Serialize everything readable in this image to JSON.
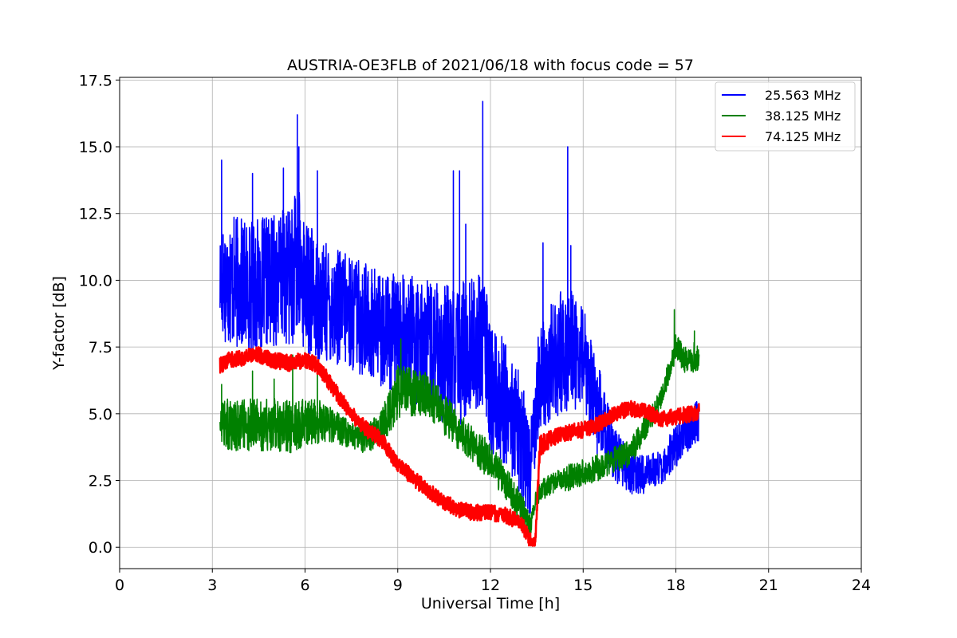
{
  "chart_data": {
    "type": "line",
    "title": "AUSTRIA-OE3FLB of 2021/06/18 with focus code = 57",
    "xlabel": "Universal Time [h]",
    "ylabel": "Y-factor [dB]",
    "xlim": [
      0,
      24
    ],
    "ylim": [
      -0.8,
      17.6
    ],
    "xticks": [
      0,
      3,
      6,
      9,
      12,
      15,
      18,
      21,
      24
    ],
    "yticks": [
      0.0,
      2.5,
      5.0,
      7.5,
      10.0,
      12.5,
      15.0,
      17.5
    ],
    "xtick_labels": [
      "0",
      "3",
      "6",
      "9",
      "12",
      "15",
      "18",
      "21",
      "24"
    ],
    "ytick_labels": [
      "0.0",
      "2.5",
      "5.0",
      "7.5",
      "10.0",
      "12.5",
      "15.0",
      "17.5"
    ],
    "grid": true,
    "legend_position": "top-right",
    "series": [
      {
        "name": "25.563 MHz",
        "color": "#0000ff",
        "x": [
          3.25,
          3.5,
          4,
          4.5,
          5,
          5.5,
          5.8,
          6,
          6.5,
          7,
          7.5,
          8,
          8.5,
          9,
          9.5,
          10,
          10.5,
          11,
          11.5,
          11.8,
          12,
          12.5,
          13,
          13.3,
          13.5,
          14,
          14.5,
          15,
          15.5,
          16,
          16.5,
          17,
          17.5,
          18,
          18.5,
          18.75
        ],
        "y": [
          10.0,
          10.0,
          9.8,
          9.8,
          10.0,
          10.2,
          10.5,
          9.8,
          9.2,
          9.0,
          8.8,
          8.5,
          8.2,
          8.0,
          7.8,
          7.6,
          7.2,
          7.2,
          7.6,
          8.0,
          5.8,
          5.5,
          4.0,
          3.0,
          6.0,
          7.0,
          7.5,
          7.0,
          5.0,
          3.5,
          2.8,
          2.7,
          3.0,
          3.8,
          4.5,
          4.8
        ],
        "spread": [
          2.0,
          2.5,
          2.5,
          2.5,
          2.5,
          2.6,
          3.0,
          2.5,
          2.3,
          2.2,
          2.2,
          2.2,
          2.2,
          2.2,
          2.4,
          2.4,
          2.6,
          2.8,
          2.6,
          2.6,
          2.4,
          2.4,
          2.4,
          1.8,
          2.2,
          2.2,
          2.4,
          2.0,
          1.8,
          1.0,
          0.8,
          0.7,
          0.7,
          0.8,
          0.8,
          0.8
        ],
        "peaks": [
          [
            3.3,
            14.5
          ],
          [
            4.3,
            14.0
          ],
          [
            5.3,
            14.2
          ],
          [
            5.75,
            16.2
          ],
          [
            5.8,
            15.0
          ],
          [
            6.4,
            14.1
          ],
          [
            10.8,
            14.1
          ],
          [
            11.0,
            14.1
          ],
          [
            11.2,
            12.1
          ],
          [
            11.75,
            16.7
          ],
          [
            13.7,
            11.4
          ],
          [
            14.5,
            15.0
          ],
          [
            14.6,
            11.3
          ]
        ]
      },
      {
        "name": "38.125 MHz",
        "color": "#008000",
        "x": [
          3.25,
          3.5,
          4,
          4.5,
          5,
          5.5,
          6,
          6.5,
          7,
          7.5,
          8,
          8.5,
          8.8,
          9,
          9.5,
          10,
          10.5,
          11,
          11.5,
          12,
          12.5,
          13,
          13.3,
          13.5,
          14,
          14.5,
          15,
          15.5,
          16,
          16.5,
          17,
          17.5,
          18,
          18.3,
          18.75
        ],
        "y": [
          4.5,
          4.6,
          4.6,
          4.6,
          4.6,
          4.5,
          4.7,
          4.7,
          4.5,
          4.2,
          4.0,
          4.6,
          5.2,
          5.8,
          5.8,
          5.7,
          5.0,
          4.3,
          3.8,
          3.2,
          2.4,
          1.5,
          0.8,
          2.0,
          2.4,
          2.6,
          2.8,
          3.0,
          3.3,
          3.5,
          4.5,
          5.5,
          7.5,
          7.0,
          7.2
        ],
        "spread": [
          0.8,
          1.0,
          1.0,
          1.0,
          1.0,
          1.0,
          0.9,
          0.8,
          0.6,
          0.5,
          0.5,
          0.7,
          0.8,
          1.0,
          0.9,
          0.8,
          0.8,
          0.7,
          0.7,
          0.7,
          0.6,
          0.6,
          0.4,
          0.4,
          0.4,
          0.5,
          0.5,
          0.5,
          0.5,
          0.5,
          0.5,
          0.4,
          0.5,
          0.5,
          0.6
        ],
        "peaks": [
          [
            3.3,
            6.1
          ],
          [
            4.3,
            6.6
          ],
          [
            5.0,
            6.3
          ],
          [
            5.6,
            7.2
          ],
          [
            6.4,
            6.6
          ],
          [
            9.1,
            7.8
          ],
          [
            17.95,
            8.9
          ],
          [
            18.6,
            8.1
          ]
        ]
      },
      {
        "name": "74.125 MHz",
        "color": "#ff0000",
        "x": [
          3.25,
          3.5,
          4,
          4.5,
          5,
          5.5,
          6,
          6.3,
          6.6,
          7,
          7.5,
          8,
          8.5,
          9,
          9.5,
          10,
          10.5,
          11,
          11.5,
          12,
          12.5,
          13,
          13.3,
          13.45,
          13.6,
          14,
          14.5,
          15,
          15.5,
          16,
          16.5,
          17,
          17.5,
          18,
          18.5,
          18.75
        ],
        "y": [
          6.8,
          7.0,
          7.1,
          7.2,
          7.0,
          6.9,
          7.0,
          6.9,
          6.5,
          5.8,
          5.0,
          4.4,
          4.0,
          3.1,
          2.6,
          2.1,
          1.7,
          1.4,
          1.3,
          1.3,
          1.2,
          0.9,
          0.2,
          0.1,
          3.8,
          4.1,
          4.3,
          4.4,
          4.6,
          5.0,
          5.2,
          5.1,
          4.8,
          4.9,
          5.0,
          5.1
        ],
        "spread": [
          0.3,
          0.3,
          0.3,
          0.3,
          0.3,
          0.3,
          0.3,
          0.3,
          0.3,
          0.3,
          0.3,
          0.3,
          0.3,
          0.3,
          0.3,
          0.3,
          0.3,
          0.3,
          0.3,
          0.3,
          0.3,
          0.3,
          0.3,
          0.2,
          0.4,
          0.3,
          0.3,
          0.3,
          0.3,
          0.3,
          0.3,
          0.3,
          0.3,
          0.3,
          0.3,
          0.3
        ],
        "peaks": []
      }
    ]
  }
}
